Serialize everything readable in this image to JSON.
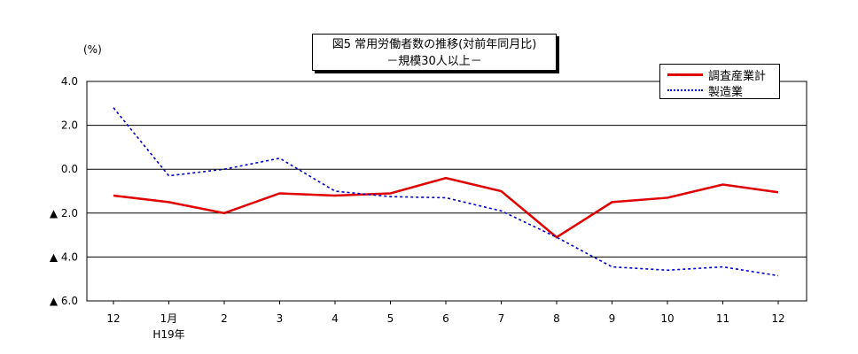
{
  "chart_data": {
    "type": "line",
    "title": "図5  常用労働者数の推移(対前年同月比)",
    "subtitle": "－規模30人以上－",
    "unit_label": "(%)",
    "categories": [
      "12",
      "1月",
      "2",
      "3",
      "4",
      "5",
      "6",
      "7",
      "8",
      "9",
      "10",
      "11",
      "12"
    ],
    "category_sublabels": [
      "",
      "H19年",
      "",
      "",
      "",
      "",
      "",
      "",
      "",
      "",
      "",
      "",
      ""
    ],
    "ylim": [
      -6.0,
      4.0
    ],
    "yticks": [
      4.0,
      2.0,
      0.0,
      -2.0,
      -4.0,
      -6.0
    ],
    "ytick_labels": [
      "4.0",
      "2.0",
      "0.0",
      "▲ 2.0",
      "▲ 4.0",
      "▲ 6.0"
    ],
    "grid": true,
    "legend_position": "top-right",
    "series": [
      {
        "name": "調査産業計",
        "color": "#e00000",
        "style": "solid",
        "values": [
          -1.2,
          -1.5,
          -2.0,
          -1.1,
          -1.2,
          -1.1,
          -0.4,
          -1.0,
          -3.1,
          -1.5,
          -1.3,
          -0.7,
          -1.05
        ]
      },
      {
        "name": "製造業",
        "color": "#0000cc",
        "style": "dotted",
        "values": [
          2.8,
          -0.3,
          0.0,
          0.5,
          -1.0,
          -1.25,
          -1.3,
          -1.9,
          -3.1,
          -4.45,
          -4.6,
          -4.45,
          -4.85
        ]
      }
    ]
  }
}
